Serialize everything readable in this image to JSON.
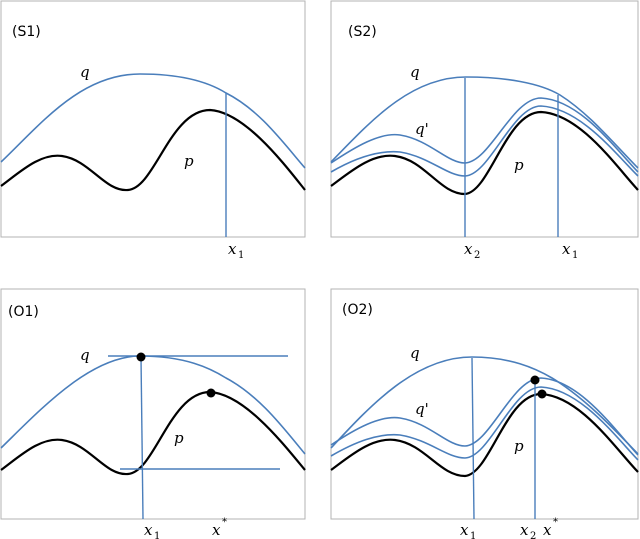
{
  "panels": {
    "s1": {
      "title": "(S1)",
      "q": "q",
      "p": "p",
      "x1": "x",
      "x1_sub": "1"
    },
    "s2": {
      "title": "(S2)",
      "q": "q",
      "q_prime": "q'",
      "p": "p",
      "x2": "x",
      "x2_sub": "2",
      "x1": "x",
      "x1_sub": "1"
    },
    "o1": {
      "title": "(O1)",
      "q": "q",
      "p": "p",
      "x1": "x",
      "x1_sub": "1",
      "xstar": "x",
      "xstar_sup": "*"
    },
    "o2": {
      "title": "(O2)",
      "q": "q",
      "q_prime": "q'",
      "p": "p",
      "x1": "x",
      "x1_sub": "1",
      "x2": "x",
      "x2_sub": "2",
      "xstar": "x",
      "xstar_sup": "*"
    }
  },
  "colors": {
    "q_curves": "#4a7ebb",
    "p_curve": "#000000",
    "frame": "#b3b3b3"
  }
}
